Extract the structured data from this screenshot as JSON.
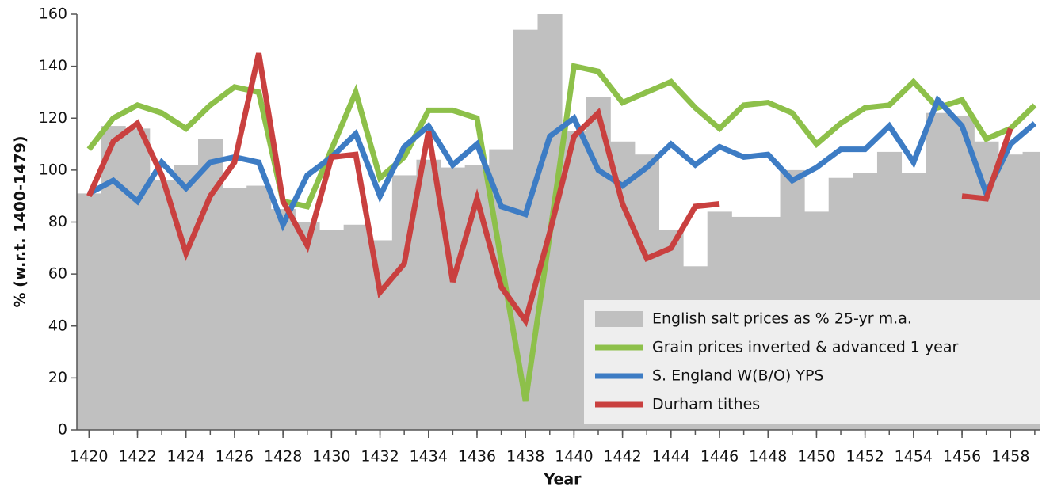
{
  "chart_data": {
    "type": "combo",
    "x_label": "Year",
    "y_label": "% (w.r.t. 1400-1479)",
    "x": [
      1420,
      1421,
      1422,
      1423,
      1424,
      1425,
      1426,
      1427,
      1428,
      1429,
      1430,
      1431,
      1432,
      1433,
      1434,
      1435,
      1436,
      1437,
      1438,
      1439,
      1440,
      1441,
      1442,
      1443,
      1444,
      1445,
      1446,
      1447,
      1448,
      1449,
      1450,
      1451,
      1452,
      1453,
      1454,
      1455,
      1456,
      1457,
      1458,
      1459
    ],
    "xlim": [
      1419.5,
      1459.2
    ],
    "xticks": [
      1420,
      1422,
      1424,
      1426,
      1428,
      1430,
      1432,
      1434,
      1436,
      1438,
      1440,
      1442,
      1444,
      1446,
      1448,
      1450,
      1452,
      1454,
      1456,
      1458
    ],
    "ylim": [
      0,
      160
    ],
    "yticks": [
      0,
      20,
      40,
      60,
      80,
      100,
      120,
      140,
      160
    ],
    "grid": false,
    "legend": "lower right",
    "series": [
      {
        "name": "English salt prices as % 25-yr m.a.",
        "style": "bar",
        "color": "#c0c0c0",
        "values": [
          91,
          117,
          116,
          96,
          102,
          112,
          93,
          94,
          85,
          80,
          77,
          79,
          73,
          98,
          104,
          101,
          102,
          108,
          154,
          160,
          115,
          128,
          111,
          106,
          77,
          63,
          84,
          82,
          82,
          100,
          84,
          97,
          99,
          107,
          99,
          122,
          121,
          111,
          106,
          107
        ]
      },
      {
        "name": "Grain prices inverted & advanced 1 year",
        "style": "line",
        "color": "#8dc04a",
        "values": [
          108,
          120,
          125,
          122,
          116,
          125,
          132,
          130,
          88,
          86,
          108,
          130,
          97,
          105,
          123,
          123,
          120,
          65,
          11,
          75,
          140,
          138,
          126,
          130,
          134,
          124,
          116,
          125,
          126,
          122,
          110,
          118,
          124,
          125,
          134,
          124,
          127,
          112,
          116,
          125
        ]
      },
      {
        "name": "S. England W(B/O) YPS",
        "style": "line",
        "color": "#3d7cc4",
        "values": [
          91,
          96,
          88,
          103,
          93,
          103,
          105,
          103,
          79,
          98,
          105,
          114,
          90,
          109,
          117,
          102,
          110,
          86,
          83,
          113,
          120,
          100,
          94,
          101,
          110,
          102,
          109,
          105,
          106,
          96,
          101,
          108,
          108,
          117,
          103,
          127,
          117,
          91,
          110,
          118
        ]
      },
      {
        "name": "Durham tithes",
        "style": "line",
        "color": "#c9403f",
        "values": [
          90,
          111,
          118,
          98,
          68,
          90,
          103,
          145,
          88,
          71,
          105,
          106,
          53,
          64,
          115,
          57,
          89,
          55,
          42,
          76,
          113,
          122,
          87,
          66,
          70,
          86,
          87,
          null,
          null,
          null,
          null,
          null,
          null,
          null,
          null,
          null,
          90,
          89,
          116,
          null
        ]
      }
    ]
  }
}
